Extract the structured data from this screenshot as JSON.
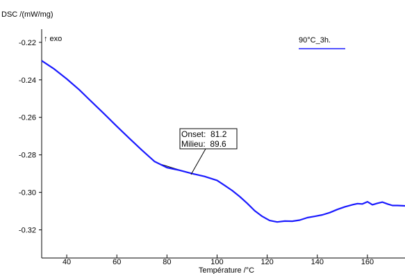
{
  "chart_data": {
    "type": "line",
    "ylabel": "DSC /(mW/mg)",
    "xlabel": "Température /°C",
    "exo_label": "↑ exo",
    "xlim": [
      30,
      175
    ],
    "ylim": [
      -0.335,
      -0.213
    ],
    "x_ticks": [
      40,
      60,
      80,
      100,
      120,
      140,
      160
    ],
    "y_ticks": [
      -0.22,
      -0.24,
      -0.26,
      -0.28,
      -0.3,
      -0.32
    ],
    "y_tick_labels": [
      "-0.22",
      "-0.24",
      "-0.26",
      "-0.28",
      "-0.30",
      "-0.32"
    ],
    "grid": false,
    "legend": "top-right",
    "series": [
      {
        "name": "90°C_3h.",
        "color": "#1a1aff",
        "x": [
          30,
          35,
          40,
          45,
          50,
          55,
          60,
          65,
          70,
          75,
          80,
          85,
          90,
          95,
          100,
          103,
          106,
          109,
          112,
          115,
          118,
          121,
          124,
          127,
          130,
          133,
          136,
          139,
          142,
          145,
          148,
          151,
          154,
          156,
          158,
          160,
          162,
          164,
          166,
          168,
          170,
          172,
          175
        ],
        "y": [
          -0.2298,
          -0.2342,
          -0.2395,
          -0.2453,
          -0.2518,
          -0.2582,
          -0.2648,
          -0.2712,
          -0.2775,
          -0.2835,
          -0.2868,
          -0.2882,
          -0.29,
          -0.2915,
          -0.2936,
          -0.2963,
          -0.299,
          -0.3022,
          -0.3058,
          -0.3098,
          -0.3128,
          -0.315,
          -0.3158,
          -0.3153,
          -0.3154,
          -0.3148,
          -0.3135,
          -0.3128,
          -0.312,
          -0.3108,
          -0.3091,
          -0.3077,
          -0.3066,
          -0.306,
          -0.3062,
          -0.305,
          -0.3066,
          -0.3058,
          -0.3052,
          -0.3062,
          -0.307,
          -0.307,
          -0.3072
        ]
      }
    ],
    "annotation": {
      "lines": [
        "Onset:  81.2",
        "Milieu:  89.6"
      ],
      "point": [
        89.6,
        -0.2905
      ]
    },
    "tangent_line": {
      "x": [
        77.5,
        91.0
      ],
      "y": [
        -0.285,
        -0.2905
      ]
    }
  }
}
